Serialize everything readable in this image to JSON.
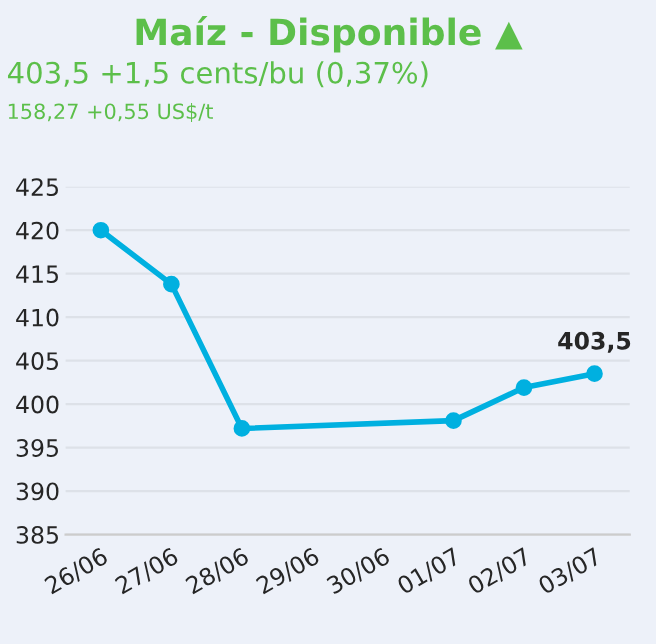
{
  "chart_data": {
    "type": "line",
    "title": "Maíz - Disponible ▲",
    "subtitle": "403,5 +1,5 cents/bu (0,37%)",
    "annotations": [
      "158,27 +0,55 US$/t"
    ],
    "categories": [
      "26/06",
      "27/06",
      "28/06",
      "29/06",
      "30/06",
      "01/07",
      "02/07",
      "03/07"
    ],
    "series": [
      {
        "color": "#00b0e0",
        "values": [
          420,
          413.8,
          397.2,
          null,
          null,
          398.1,
          401.9,
          403.5
        ],
        "value_labels": [
          null,
          null,
          null,
          null,
          null,
          null,
          null,
          "403,5"
        ]
      }
    ],
    "ylim": [
      385,
      425
    ],
    "yticks": [
      385,
      390,
      395,
      400,
      405,
      410,
      415,
      420,
      425
    ],
    "grid": "y",
    "marker": "circle",
    "line_style": "solid",
    "legend": false
  }
}
